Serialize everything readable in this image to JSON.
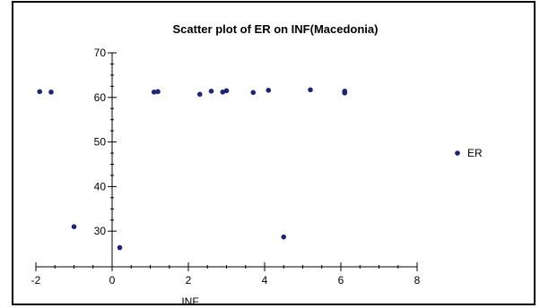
{
  "chart_data": {
    "type": "scatter",
    "title": "Scatter plot of ER on INF(Macedonia)",
    "xlabel": "INF",
    "ylabel": "",
    "xlim": [
      -2,
      8
    ],
    "ylim": [
      22,
      70
    ],
    "x_ticks": [
      -2,
      0,
      2,
      4,
      6,
      8
    ],
    "y_ticks": [
      30,
      40,
      50,
      60,
      70
    ],
    "grid": false,
    "legend_position": "right",
    "series": [
      {
        "name": "ER",
        "color": "#1a237e",
        "points": [
          {
            "x": -1.9,
            "y": 61.3
          },
          {
            "x": -1.6,
            "y": 61.2
          },
          {
            "x": -1.0,
            "y": 31.0
          },
          {
            "x": 0.2,
            "y": 26.3
          },
          {
            "x": 1.1,
            "y": 61.2
          },
          {
            "x": 1.2,
            "y": 61.3
          },
          {
            "x": 2.3,
            "y": 60.7
          },
          {
            "x": 2.6,
            "y": 61.4
          },
          {
            "x": 2.9,
            "y": 61.2
          },
          {
            "x": 3.0,
            "y": 61.5
          },
          {
            "x": 3.7,
            "y": 61.1
          },
          {
            "x": 4.1,
            "y": 61.6
          },
          {
            "x": 4.5,
            "y": 28.7
          },
          {
            "x": 5.2,
            "y": 61.7
          },
          {
            "x": 6.1,
            "y": 61.0
          },
          {
            "x": 6.1,
            "y": 61.4
          }
        ]
      }
    ]
  }
}
